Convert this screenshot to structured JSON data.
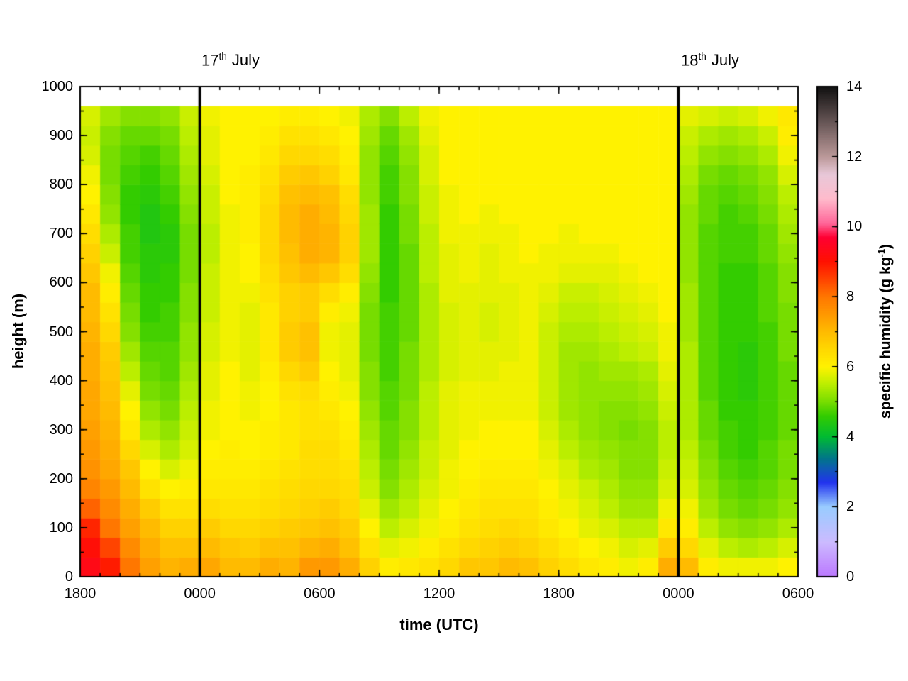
{
  "annotations": [
    {
      "day": "17",
      "ordinal": "th",
      "month": "July"
    },
    {
      "day": "18",
      "ordinal": "th",
      "month": "July"
    }
  ],
  "chart_data": {
    "type": "heatmap",
    "title": "",
    "xlabel": "time (UTC)",
    "ylabel": "height (m)",
    "colorbar_label": "specific humidity (g kg-1)",
    "colorbar_label_prefix": "specific humidity (g kg",
    "colorbar_label_sup": "-1",
    "colorbar_label_suffix": ")",
    "x_tick_labels": [
      "1800",
      "0000",
      "0600",
      "1200",
      "1800",
      "0000",
      "0600"
    ],
    "x_tick_hours": [
      0,
      6,
      12,
      18,
      24,
      30,
      36
    ],
    "x_minor_step_h": 1,
    "x_range_hours": [
      0,
      36
    ],
    "y_tick_labels": [
      "0",
      "100",
      "200",
      "300",
      "400",
      "500",
      "600",
      "700",
      "800",
      "900",
      "1000"
    ],
    "y_tick_values": [
      0,
      100,
      200,
      300,
      400,
      500,
      600,
      700,
      800,
      900,
      1000
    ],
    "y_minor_step_m": 50,
    "ylim": [
      0,
      1000
    ],
    "data_top_m": 960,
    "cell_height_m": 40,
    "col_duration_h": 1,
    "day_lines_hours": [
      6,
      30
    ],
    "grid": false,
    "colorbar_tick_labels": [
      "0",
      "2",
      "4",
      "6",
      "8",
      "10",
      "12",
      "14"
    ],
    "colorbar_tick_values": [
      0,
      2,
      4,
      6,
      8,
      10,
      12,
      14
    ],
    "colorbar_minor_step": 1,
    "clim": [
      0,
      14
    ],
    "colormap_stops": [
      [
        0.0,
        "#bb77ff"
      ],
      [
        1.0,
        "#ccbbff"
      ],
      [
        2.0,
        "#99ccff"
      ],
      [
        2.7,
        "#2233ee"
      ],
      [
        3.4,
        "#007788"
      ],
      [
        4.0,
        "#00bb33"
      ],
      [
        4.6,
        "#33cc00"
      ],
      [
        5.0,
        "#77dd00"
      ],
      [
        5.5,
        "#bbee00"
      ],
      [
        6.0,
        "#fff200"
      ],
      [
        6.5,
        "#ffd800"
      ],
      [
        7.0,
        "#ffbb00"
      ],
      [
        7.5,
        "#ff9900"
      ],
      [
        8.0,
        "#ff7700"
      ],
      [
        8.5,
        "#ff4400"
      ],
      [
        9.0,
        "#ff1100"
      ],
      [
        9.7,
        "#ff0033"
      ],
      [
        10.1,
        "#ff6699"
      ],
      [
        10.8,
        "#ffbbcc"
      ],
      [
        11.5,
        "#e8c8d8"
      ],
      [
        12.0,
        "#bb9999"
      ],
      [
        13.0,
        "#665555"
      ],
      [
        14.0,
        "#111111"
      ]
    ],
    "frame_color": "#000000",
    "day_line_color": "#000000",
    "values_note": "columns hourly from 1800 UTC 16 July to 0600 UTC 18 July; each column bottom-to-top, 40 m cells, 0-960 m; units g/kg",
    "values": [
      [
        9.3,
        9.1,
        8.8,
        8.2,
        7.8,
        7.6,
        7.5,
        7.4,
        7.3,
        7.3,
        7.2,
        7.2,
        7.1,
        7.0,
        7.0,
        6.8,
        6.6,
        6.4,
        6.2,
        6.0,
        5.9,
        5.7,
        5.6,
        5.7
      ],
      [
        8.9,
        8.5,
        8.0,
        7.7,
        7.5,
        7.3,
        7.2,
        7.1,
        7.0,
        6.9,
        6.8,
        6.7,
        6.5,
        6.3,
        6.1,
        5.9,
        5.6,
        5.4,
        5.2,
        5.1,
        5.0,
        5.0,
        5.1,
        5.3
      ],
      [
        8.0,
        7.7,
        7.4,
        7.2,
        7.0,
        6.8,
        6.5,
        6.2,
        6.0,
        5.8,
        5.5,
        5.3,
        5.1,
        5.0,
        4.9,
        4.8,
        4.7,
        4.7,
        4.6,
        4.6,
        4.7,
        4.8,
        4.9,
        5.1
      ],
      [
        7.4,
        7.2,
        7.0,
        6.7,
        6.3,
        6.0,
        5.7,
        5.4,
        5.2,
        5.0,
        4.9,
        4.8,
        4.7,
        4.6,
        4.6,
        4.5,
        4.5,
        4.4,
        4.4,
        4.5,
        4.6,
        4.7,
        4.9,
        5.1
      ],
      [
        7.1,
        6.9,
        6.6,
        6.3,
        6.0,
        5.7,
        5.4,
        5.2,
        5.0,
        4.9,
        4.8,
        4.8,
        4.7,
        4.7,
        4.6,
        4.6,
        4.5,
        4.5,
        4.6,
        4.7,
        4.8,
        4.9,
        5.0,
        5.2
      ],
      [
        7.2,
        6.9,
        6.6,
        6.3,
        6.1,
        5.9,
        5.7,
        5.6,
        5.5,
        5.4,
        5.3,
        5.2,
        5.2,
        5.1,
        5.1,
        5.0,
        5.0,
        5.0,
        5.1,
        5.2,
        5.3,
        5.4,
        5.5,
        5.6
      ],
      [
        7.3,
        7.0,
        6.7,
        6.4,
        6.2,
        6.1,
        6.0,
        5.9,
        5.9,
        5.8,
        5.8,
        5.7,
        5.7,
        5.6,
        5.6,
        5.6,
        5.5,
        5.5,
        5.6,
        5.6,
        5.7,
        5.8,
        5.8,
        5.9
      ],
      [
        7.0,
        6.8,
        6.5,
        6.3,
        6.2,
        6.1,
        6.1,
        6.0,
        6.0,
        6.0,
        6.0,
        5.9,
        5.9,
        5.9,
        5.9,
        5.9,
        5.9,
        5.9,
        5.9,
        6.0,
        6.0,
        6.0,
        6.0,
        6.0
      ],
      [
        7.0,
        6.7,
        6.5,
        6.3,
        6.2,
        6.1,
        6.0,
        6.0,
        5.9,
        5.9,
        5.8,
        5.8,
        5.8,
        5.8,
        5.9,
        6.0,
        6.0,
        6.1,
        6.1,
        6.1,
        6.1,
        6.0,
        6.0,
        6.0
      ],
      [
        7.2,
        6.9,
        6.6,
        6.4,
        6.3,
        6.2,
        6.1,
        6.1,
        6.0,
        6.0,
        6.1,
        6.2,
        6.2,
        6.2,
        6.3,
        6.4,
        6.5,
        6.5,
        6.5,
        6.4,
        6.3,
        6.2,
        6.1,
        6.0
      ],
      [
        7.1,
        6.9,
        6.7,
        6.5,
        6.4,
        6.3,
        6.2,
        6.2,
        6.2,
        6.3,
        6.5,
        6.7,
        6.7,
        6.6,
        6.6,
        6.8,
        6.9,
        7.0,
        7.0,
        6.9,
        6.7,
        6.5,
        6.3,
        6.1
      ],
      [
        7.5,
        7.1,
        6.8,
        6.6,
        6.5,
        6.4,
        6.4,
        6.3,
        6.3,
        6.4,
        6.7,
        6.9,
        6.9,
        6.7,
        6.7,
        7.0,
        7.2,
        7.2,
        7.2,
        7.0,
        6.8,
        6.5,
        6.3,
        6.1
      ],
      [
        7.5,
        7.2,
        6.9,
        6.7,
        6.5,
        6.4,
        6.4,
        6.3,
        6.2,
        6.1,
        6.0,
        5.9,
        5.9,
        6.1,
        6.4,
        6.8,
        7.1,
        7.1,
        7.0,
        6.9,
        6.6,
        6.4,
        6.2,
        6.0
      ],
      [
        7.2,
        6.9,
        6.7,
        6.5,
        6.4,
        6.3,
        6.2,
        6.1,
        6.0,
        5.9,
        5.8,
        5.8,
        5.8,
        5.9,
        6.1,
        6.4,
        6.6,
        6.6,
        6.5,
        6.4,
        6.2,
        6.1,
        6.0,
        5.9
      ],
      [
        6.6,
        6.3,
        6.0,
        5.8,
        5.6,
        5.5,
        5.4,
        5.3,
        5.2,
        5.1,
        5.1,
        5.0,
        5.0,
        5.0,
        5.1,
        5.2,
        5.3,
        5.3,
        5.3,
        5.2,
        5.2,
        5.2,
        5.3,
        5.4
      ],
      [
        6.1,
        5.8,
        5.5,
        5.3,
        5.1,
        5.0,
        4.9,
        4.9,
        4.8,
        4.8,
        4.7,
        4.7,
        4.7,
        4.7,
        4.6,
        4.6,
        4.6,
        4.6,
        4.6,
        4.7,
        4.7,
        4.8,
        4.9,
        5.1
      ],
      [
        6.2,
        5.9,
        5.7,
        5.5,
        5.4,
        5.3,
        5.2,
        5.1,
        5.1,
        5.0,
        5.0,
        5.0,
        4.9,
        4.9,
        4.9,
        4.9,
        4.9,
        5.0,
        5.0,
        5.1,
        5.1,
        5.2,
        5.3,
        5.5
      ],
      [
        6.3,
        6.1,
        5.9,
        5.8,
        5.7,
        5.6,
        5.6,
        5.5,
        5.5,
        5.5,
        5.4,
        5.4,
        5.4,
        5.4,
        5.4,
        5.5,
        5.5,
        5.5,
        5.6,
        5.6,
        5.7,
        5.7,
        5.8,
        5.9
      ],
      [
        6.5,
        6.3,
        6.1,
        6.0,
        5.9,
        5.9,
        5.8,
        5.8,
        5.8,
        5.8,
        5.7,
        5.7,
        5.7,
        5.7,
        5.8,
        5.8,
        5.8,
        5.9,
        5.9,
        5.9,
        6.0,
        6.0,
        6.0,
        6.0
      ],
      [
        6.8,
        6.5,
        6.3,
        6.2,
        6.1,
        6.0,
        6.0,
        5.9,
        5.9,
        5.9,
        5.8,
        5.8,
        5.8,
        5.8,
        5.8,
        5.9,
        5.9,
        5.9,
        6.0,
        6.0,
        6.0,
        6.0,
        6.0,
        6.0
      ],
      [
        6.8,
        6.6,
        6.4,
        6.3,
        6.2,
        6.1,
        6.0,
        6.0,
        5.9,
        5.9,
        5.8,
        5.8,
        5.7,
        5.7,
        5.8,
        5.8,
        5.8,
        5.9,
        5.9,
        6.0,
        6.0,
        6.0,
        6.0,
        6.0
      ],
      [
        7.0,
        6.7,
        6.5,
        6.3,
        6.2,
        6.1,
        6.0,
        6.0,
        5.9,
        5.9,
        5.9,
        5.8,
        5.8,
        5.8,
        5.8,
        5.9,
        5.9,
        5.9,
        6.0,
        6.0,
        6.0,
        6.0,
        6.0,
        6.0
      ],
      [
        6.9,
        6.6,
        6.4,
        6.3,
        6.2,
        6.1,
        6.0,
        6.0,
        5.9,
        5.9,
        5.9,
        5.9,
        5.9,
        5.9,
        5.9,
        5.9,
        6.0,
        6.0,
        6.0,
        6.0,
        6.0,
        6.0,
        6.0,
        6.0
      ],
      [
        6.6,
        6.4,
        6.2,
        6.1,
        6.0,
        5.9,
        5.8,
        5.7,
        5.6,
        5.6,
        5.6,
        5.6,
        5.6,
        5.7,
        5.8,
        5.9,
        5.9,
        6.0,
        6.0,
        6.0,
        6.0,
        6.0,
        6.0,
        6.0
      ],
      [
        6.4,
        6.2,
        6.0,
        5.9,
        5.8,
        5.7,
        5.5,
        5.4,
        5.3,
        5.3,
        5.3,
        5.3,
        5.4,
        5.5,
        5.6,
        5.8,
        5.9,
        5.9,
        6.0,
        6.0,
        6.0,
        6.0,
        6.0,
        6.0
      ],
      [
        6.2,
        6.0,
        5.8,
        5.7,
        5.6,
        5.4,
        5.3,
        5.2,
        5.2,
        5.2,
        5.2,
        5.3,
        5.4,
        5.5,
        5.6,
        5.8,
        5.9,
        6.0,
        6.0,
        6.0,
        6.0,
        6.0,
        6.0,
        6.0
      ],
      [
        6.1,
        5.9,
        5.7,
        5.5,
        5.4,
        5.3,
        5.2,
        5.1,
        5.1,
        5.2,
        5.3,
        5.4,
        5.5,
        5.6,
        5.7,
        5.8,
        5.9,
        6.0,
        6.0,
        6.0,
        6.0,
        6.0,
        6.0,
        6.0
      ],
      [
        5.9,
        5.7,
        5.5,
        5.3,
        5.2,
        5.1,
        5.1,
        5.0,
        5.1,
        5.2,
        5.3,
        5.5,
        5.6,
        5.7,
        5.8,
        5.9,
        6.0,
        6.0,
        6.0,
        6.0,
        6.0,
        6.0,
        6.0,
        6.0
      ],
      [
        6.1,
        5.8,
        5.5,
        5.3,
        5.2,
        5.1,
        5.1,
        5.1,
        5.2,
        5.3,
        5.4,
        5.6,
        5.7,
        5.8,
        5.9,
        6.0,
        6.0,
        6.0,
        6.0,
        6.0,
        6.0,
        6.0,
        6.0,
        6.0
      ],
      [
        7.2,
        6.7,
        6.2,
        5.9,
        5.7,
        5.6,
        5.5,
        5.5,
        5.6,
        5.7,
        5.8,
        5.9,
        5.9,
        6.0,
        6.0,
        6.0,
        6.0,
        6.0,
        6.0,
        6.0,
        6.0,
        6.0,
        6.0,
        6.0
      ],
      [
        7.0,
        6.5,
        6.1,
        5.9,
        5.7,
        5.6,
        5.5,
        5.4,
        5.4,
        5.4,
        5.4,
        5.4,
        5.3,
        5.3,
        5.3,
        5.2,
        5.2,
        5.2,
        5.2,
        5.3,
        5.4,
        5.5,
        5.6,
        5.8
      ],
      [
        6.1,
        5.8,
        5.5,
        5.3,
        5.2,
        5.1,
        5.0,
        4.9,
        4.9,
        4.8,
        4.8,
        4.8,
        4.8,
        4.8,
        4.8,
        4.8,
        4.8,
        4.8,
        4.9,
        4.9,
        5.0,
        5.2,
        5.4,
        5.7
      ],
      [
        5.9,
        5.5,
        5.2,
        5.0,
        4.9,
        4.8,
        4.7,
        4.7,
        4.6,
        4.6,
        4.6,
        4.6,
        4.6,
        4.6,
        4.6,
        4.6,
        4.7,
        4.7,
        4.7,
        4.8,
        4.9,
        5.1,
        5.3,
        5.6
      ],
      [
        5.9,
        5.4,
        5.1,
        4.9,
        4.8,
        4.7,
        4.6,
        4.6,
        4.6,
        4.5,
        4.5,
        4.5,
        4.6,
        4.6,
        4.6,
        4.6,
        4.7,
        4.7,
        4.8,
        4.9,
        5.0,
        5.2,
        5.4,
        5.7
      ],
      [
        5.9,
        5.5,
        5.2,
        5.0,
        4.9,
        4.8,
        4.8,
        4.7,
        4.7,
        4.7,
        4.7,
        4.7,
        4.7,
        4.8,
        4.8,
        4.8,
        4.9,
        4.9,
        5.0,
        5.1,
        5.2,
        5.4,
        5.6,
        5.9
      ],
      [
        6.0,
        5.7,
        5.4,
        5.2,
        5.1,
        5.0,
        5.0,
        4.9,
        4.9,
        4.9,
        4.9,
        5.0,
        5.0,
        5.0,
        5.1,
        5.1,
        5.2,
        5.3,
        5.4,
        5.5,
        5.7,
        5.9,
        6.1,
        6.2
      ]
    ]
  }
}
